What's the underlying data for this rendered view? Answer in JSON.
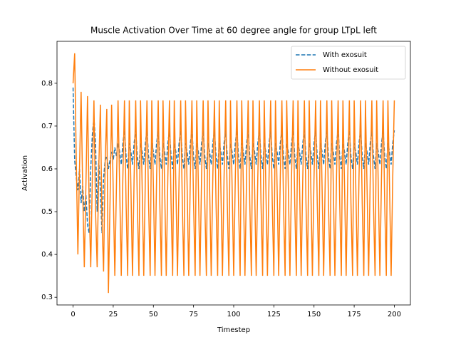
{
  "chart_data": {
    "type": "line",
    "title": "Muscle Activation Over Time at 60 degree angle for group LTpL left",
    "x_label": "Timestep",
    "y_label": "Activation",
    "legend_position": "upper right",
    "xlim": [
      -10,
      210
    ],
    "xticks": [
      0,
      25,
      50,
      75,
      100,
      125,
      150,
      175,
      200
    ],
    "ylim": [
      0.282,
      0.898
    ],
    "yticks": [
      0.3,
      0.4,
      0.5,
      0.6,
      0.7,
      0.8
    ],
    "x": [
      0,
      1,
      2,
      3,
      4,
      5,
      6,
      7,
      8,
      9,
      10,
      11,
      12,
      13,
      14,
      15,
      16,
      17,
      18,
      19,
      20,
      21,
      22,
      23,
      24,
      25,
      26,
      27,
      28,
      29,
      30,
      31,
      32,
      33,
      34,
      35,
      36,
      37,
      38,
      39,
      40,
      41,
      42,
      43,
      44,
      45,
      46,
      47,
      48,
      49,
      50,
      51,
      52,
      53,
      54,
      55,
      56,
      57,
      58,
      59,
      60,
      61,
      62,
      63,
      64,
      65,
      66,
      67,
      68,
      69,
      70,
      71,
      72,
      73,
      74,
      75,
      76,
      77,
      78,
      79,
      80,
      81,
      82,
      83,
      84,
      85,
      86,
      87,
      88,
      89,
      90,
      91,
      92,
      93,
      94,
      95,
      96,
      97,
      98,
      99,
      100,
      101,
      102,
      103,
      104,
      105,
      106,
      107,
      108,
      109,
      110,
      111,
      112,
      113,
      114,
      115,
      116,
      117,
      118,
      119,
      120,
      121,
      122,
      123,
      124,
      125,
      126,
      127,
      128,
      129,
      130,
      131,
      132,
      133,
      134,
      135,
      136,
      137,
      138,
      139,
      140,
      141,
      142,
      143,
      144,
      145,
      146,
      147,
      148,
      149,
      150,
      151,
      152,
      153,
      154,
      155,
      156,
      157,
      158,
      159,
      160,
      161,
      162,
      163,
      164,
      165,
      166,
      167,
      168,
      169,
      170,
      171,
      172,
      173,
      174,
      175,
      176,
      177,
      178,
      179,
      180,
      181,
      182,
      183,
      184,
      185,
      186,
      187,
      188,
      189,
      190,
      191,
      192,
      193,
      194,
      195,
      196,
      197,
      198,
      199,
      200
    ],
    "series": [
      {
        "name": "With exosuit",
        "color": "#1f77b4",
        "linestyle": "dashed",
        "values": [
          0.79,
          0.62,
          0.58,
          0.55,
          0.6,
          0.52,
          0.56,
          0.5,
          0.54,
          0.47,
          0.45,
          0.6,
          0.68,
          0.72,
          0.66,
          0.5,
          0.62,
          0.55,
          0.45,
          0.58,
          0.62,
          0.63,
          0.6,
          0.62,
          0.64,
          0.62,
          0.65,
          0.63,
          0.66,
          0.64,
          0.61,
          0.66,
          0.69,
          0.63,
          0.6,
          0.66,
          0.64,
          0.61,
          0.66,
          0.69,
          0.63,
          0.6,
          0.66,
          0.64,
          0.61,
          0.66,
          0.69,
          0.63,
          0.6,
          0.66,
          0.64,
          0.61,
          0.66,
          0.69,
          0.63,
          0.6,
          0.66,
          0.64,
          0.61,
          0.66,
          0.69,
          0.63,
          0.6,
          0.66,
          0.64,
          0.61,
          0.66,
          0.69,
          0.63,
          0.6,
          0.66,
          0.64,
          0.61,
          0.66,
          0.69,
          0.63,
          0.6,
          0.66,
          0.64,
          0.61,
          0.66,
          0.69,
          0.63,
          0.6,
          0.66,
          0.64,
          0.61,
          0.66,
          0.69,
          0.63,
          0.6,
          0.66,
          0.64,
          0.61,
          0.66,
          0.69,
          0.63,
          0.6,
          0.66,
          0.64,
          0.61,
          0.66,
          0.69,
          0.63,
          0.6,
          0.66,
          0.64,
          0.61,
          0.66,
          0.69,
          0.63,
          0.6,
          0.66,
          0.64,
          0.61,
          0.66,
          0.69,
          0.63,
          0.6,
          0.66,
          0.64,
          0.61,
          0.66,
          0.69,
          0.63,
          0.6,
          0.66,
          0.64,
          0.61,
          0.66,
          0.69,
          0.63,
          0.6,
          0.66,
          0.64,
          0.61,
          0.66,
          0.69,
          0.63,
          0.6,
          0.66,
          0.64,
          0.61,
          0.66,
          0.69,
          0.63,
          0.6,
          0.66,
          0.64,
          0.61,
          0.66,
          0.69,
          0.63,
          0.6,
          0.66,
          0.64,
          0.61,
          0.66,
          0.69,
          0.63,
          0.6,
          0.66,
          0.64,
          0.61,
          0.66,
          0.69,
          0.63,
          0.6,
          0.66,
          0.64,
          0.61,
          0.66,
          0.69,
          0.63,
          0.6,
          0.66,
          0.64,
          0.61,
          0.66,
          0.69,
          0.63,
          0.6,
          0.66,
          0.64,
          0.61,
          0.66,
          0.69,
          0.63,
          0.6,
          0.66,
          0.64,
          0.61,
          0.66,
          0.69,
          0.63,
          0.6,
          0.66,
          0.64,
          0.61,
          0.66,
          0.69
        ]
      },
      {
        "name": "Without exosuit",
        "color": "#ff7f0e",
        "linestyle": "solid",
        "values": [
          0.8,
          0.87,
          0.62,
          0.4,
          0.6,
          0.78,
          0.55,
          0.37,
          0.56,
          0.77,
          0.52,
          0.37,
          0.58,
          0.76,
          0.5,
          0.37,
          0.6,
          0.75,
          0.48,
          0.36,
          0.62,
          0.74,
          0.31,
          0.52,
          0.75,
          0.55,
          0.35,
          0.56,
          0.76,
          0.56,
          0.35,
          0.58,
          0.76,
          0.52,
          0.35,
          0.76,
          0.56,
          0.35,
          0.58,
          0.76,
          0.52,
          0.35,
          0.76,
          0.56,
          0.35,
          0.58,
          0.76,
          0.52,
          0.35,
          0.76,
          0.56,
          0.35,
          0.58,
          0.76,
          0.52,
          0.35,
          0.76,
          0.56,
          0.35,
          0.58,
          0.76,
          0.52,
          0.35,
          0.76,
          0.56,
          0.35,
          0.58,
          0.76,
          0.52,
          0.35,
          0.76,
          0.56,
          0.35,
          0.58,
          0.76,
          0.52,
          0.35,
          0.76,
          0.56,
          0.35,
          0.58,
          0.76,
          0.52,
          0.35,
          0.76,
          0.56,
          0.35,
          0.58,
          0.76,
          0.52,
          0.35,
          0.76,
          0.56,
          0.35,
          0.58,
          0.76,
          0.52,
          0.35,
          0.76,
          0.56,
          0.35,
          0.58,
          0.76,
          0.52,
          0.35,
          0.76,
          0.56,
          0.35,
          0.58,
          0.76,
          0.52,
          0.35,
          0.76,
          0.56,
          0.35,
          0.58,
          0.76,
          0.52,
          0.35,
          0.76,
          0.56,
          0.35,
          0.58,
          0.76,
          0.52,
          0.35,
          0.76,
          0.56,
          0.35,
          0.58,
          0.76,
          0.52,
          0.35,
          0.76,
          0.56,
          0.35,
          0.58,
          0.76,
          0.52,
          0.35,
          0.76,
          0.56,
          0.35,
          0.58,
          0.76,
          0.52,
          0.35,
          0.76,
          0.56,
          0.35,
          0.58,
          0.76,
          0.52,
          0.35,
          0.76,
          0.56,
          0.35,
          0.58,
          0.76,
          0.52,
          0.35,
          0.76,
          0.56,
          0.35,
          0.58,
          0.76,
          0.52,
          0.35,
          0.76,
          0.56,
          0.35,
          0.58,
          0.76,
          0.52,
          0.35,
          0.76,
          0.56,
          0.35,
          0.58,
          0.76,
          0.52,
          0.35,
          0.76,
          0.56,
          0.35,
          0.58,
          0.76,
          0.52,
          0.35,
          0.76,
          0.56,
          0.35,
          0.58,
          0.76,
          0.52,
          0.35,
          0.76,
          0.56,
          0.35,
          0.58,
          0.76
        ]
      }
    ]
  }
}
